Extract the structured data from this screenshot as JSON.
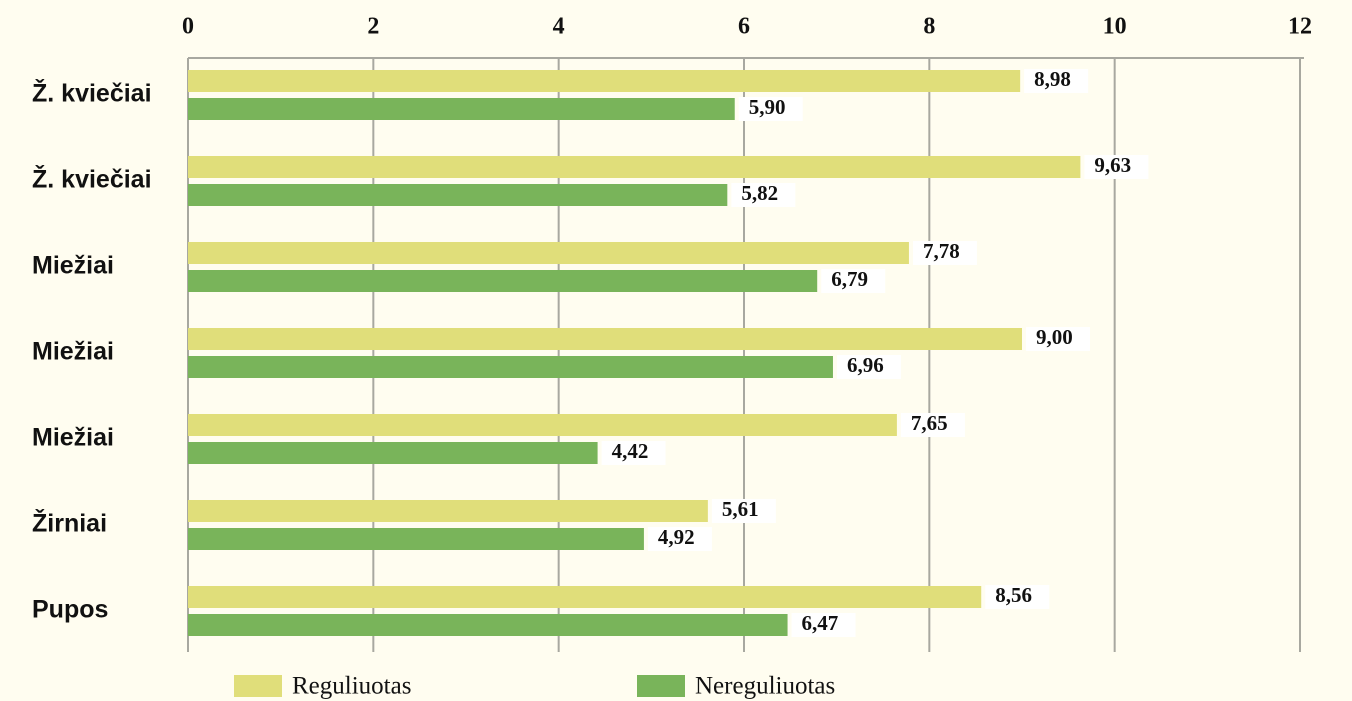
{
  "chart_data": {
    "type": "hbar",
    "categories": [
      "Ž. kviečiai",
      "Ž. kviečiai",
      "Miežiai",
      "Miežiai",
      "Miežiai",
      "Žirniai",
      "Pupos"
    ],
    "series": [
      {
        "name": "Reguliuotas",
        "color": "#e0de7a",
        "values": [
          8.98,
          9.63,
          7.78,
          9.0,
          7.65,
          5.61,
          8.56
        ],
        "value_labels": [
          "8,98",
          "9,63",
          "7,78",
          "9,00",
          "7,65",
          "5,61",
          "8,56"
        ]
      },
      {
        "name": "Nereguliuotas",
        "color": "#79b45a",
        "values": [
          5.9,
          5.82,
          6.79,
          6.96,
          4.42,
          4.92,
          6.47
        ],
        "value_labels": [
          "5,90",
          "5,82",
          "6,79",
          "6,96",
          "4,42",
          "4,92",
          "6,47"
        ]
      }
    ],
    "xlim": [
      0,
      12
    ],
    "xticks": [
      0,
      2,
      4,
      6,
      8,
      10,
      12
    ],
    "grid": true,
    "legend": "bottom"
  }
}
